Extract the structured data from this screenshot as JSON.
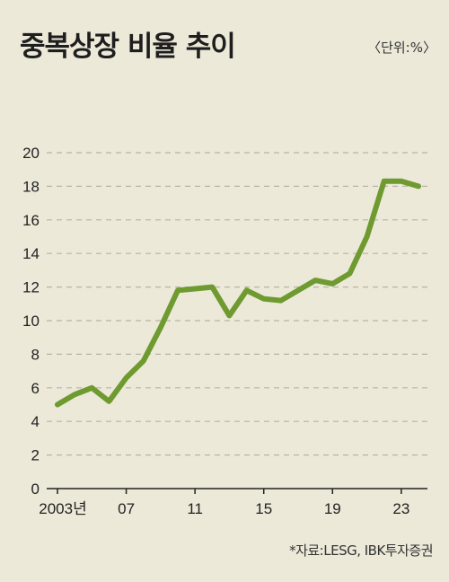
{
  "title": "중복상장 비율 추이",
  "unit_label": "〈단위:%〉",
  "source": "*자료:LESG, IBK투자증권",
  "colors": {
    "line": "#6e9a2f",
    "background": "#ece9d9",
    "grid": "#b7b4a7"
  },
  "chart_data": {
    "type": "line",
    "x": [
      2003,
      2004,
      2005,
      2006,
      2007,
      2008,
      2009,
      2010,
      2011,
      2012,
      2013,
      2014,
      2015,
      2016,
      2017,
      2018,
      2019,
      2020,
      2021,
      2022,
      2023,
      2024
    ],
    "x_tick_values": [
      2003,
      2007,
      2011,
      2015,
      2019,
      2023
    ],
    "x_tick_labels": [
      "2003년",
      "07",
      "11",
      "15",
      "19",
      "23"
    ],
    "series": [
      {
        "values": [
          5.0,
          5.6,
          6.0,
          5.2,
          6.6,
          7.6,
          9.6,
          11.8,
          11.9,
          12.0,
          10.3,
          11.8,
          11.3,
          11.2,
          11.8,
          12.4,
          12.2,
          12.8,
          15.0,
          18.3,
          18.3,
          18.0
        ]
      }
    ],
    "ylim": [
      0,
      20
    ],
    "y_ticks": [
      "0",
      "2",
      "4",
      "6",
      "8",
      "10",
      "12",
      "14",
      "16",
      "18",
      "20"
    ],
    "grid": true,
    "xlabel": "",
    "ylabel": ""
  }
}
